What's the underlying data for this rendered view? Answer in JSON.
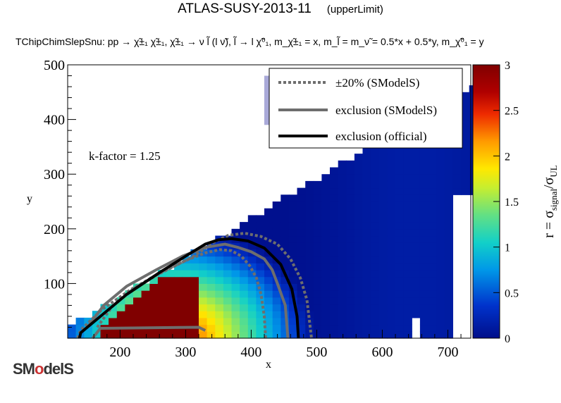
{
  "header": {
    "title": "ATLAS-SUSY-2013-11",
    "title_tag": "(upperLimit)",
    "subtitle": "TChipChimSlepSnu: pp → χ̃±₁ χ̃±₁, χ̃±₁ → ν l̃ (l ν̃), l̃ → l χ̃⁰₁, m_χ̃±₁ = x, m_l̃ = m_ν̃ = 0.5*x + 0.5*y, m_χ̃⁰₁ = y"
  },
  "chart_data": {
    "type": "heatmap",
    "xlabel": "x",
    "ylabel": "y",
    "xlim": [
      120,
      735
    ],
    "ylim": [
      0,
      500
    ],
    "x_ticks": [
      200,
      300,
      400,
      500,
      600,
      700
    ],
    "y_ticks": [
      100,
      200,
      300,
      400,
      500
    ],
    "z_label": "r = σ_signal/σ_UL",
    "z_range": [
      0,
      3
    ],
    "z_ticks": [
      "0",
      "0.5",
      "1",
      "1.5",
      "2",
      "2.5",
      "3"
    ],
    "annotation": "k-factor = 1.25",
    "legend_position": "top-right",
    "legend": [
      {
        "label": "±20% (SModelS)",
        "style": "dotted",
        "color": "#6e6e6e"
      },
      {
        "label": "exclusion (SModelS)",
        "style": "solid",
        "color": "#6e6e6e"
      },
      {
        "label": "exclusion (official)",
        "style": "solid",
        "color": "#000000"
      }
    ],
    "official_exclusion": [
      [
        138,
        0
      ],
      [
        140,
        10
      ],
      [
        170,
        40
      ],
      [
        210,
        80
      ],
      [
        260,
        120
      ],
      [
        300,
        150
      ],
      [
        330,
        172
      ],
      [
        350,
        180
      ],
      [
        370,
        182
      ],
      [
        395,
        178
      ],
      [
        420,
        165
      ],
      [
        445,
        135
      ],
      [
        462,
        90
      ],
      [
        470,
        40
      ],
      [
        472,
        0
      ]
    ],
    "smodels_exclusion": [
      [
        150,
        20
      ],
      [
        175,
        60
      ],
      [
        210,
        95
      ],
      [
        255,
        125
      ],
      [
        295,
        150
      ],
      [
        330,
        166
      ],
      [
        360,
        172
      ],
      [
        380,
        166
      ],
      [
        400,
        158
      ],
      [
        420,
        145
      ],
      [
        432,
        125
      ],
      [
        440,
        100
      ],
      [
        452,
        60
      ],
      [
        456,
        0
      ]
    ],
    "smodels_minus20": [
      [
        165,
        20
      ],
      [
        188,
        58
      ],
      [
        220,
        90
      ],
      [
        260,
        118
      ],
      [
        300,
        142
      ],
      [
        330,
        156
      ],
      [
        352,
        162
      ],
      [
        370,
        160
      ],
      [
        385,
        150
      ],
      [
        398,
        132
      ],
      [
        408,
        110
      ],
      [
        415,
        80
      ],
      [
        420,
        40
      ],
      [
        422,
        0
      ]
    ],
    "smodels_plus20": [
      [
        135,
        0
      ],
      [
        140,
        15
      ],
      [
        172,
        52
      ],
      [
        215,
        88
      ],
      [
        265,
        122
      ],
      [
        310,
        148
      ],
      [
        342,
        175
      ],
      [
        365,
        188
      ],
      [
        390,
        192
      ],
      [
        415,
        186
      ],
      [
        440,
        172
      ],
      [
        460,
        145
      ],
      [
        475,
        110
      ],
      [
        485,
        70
      ],
      [
        492,
        0
      ]
    ],
    "smodels_bottom_edge": [
      [
        158,
        0
      ],
      [
        170,
        18
      ],
      [
        320,
        20
      ],
      [
        330,
        14
      ]
    ]
  },
  "logo": {
    "text_a": "SM",
    "text_o": "o",
    "text_b": "delS"
  }
}
